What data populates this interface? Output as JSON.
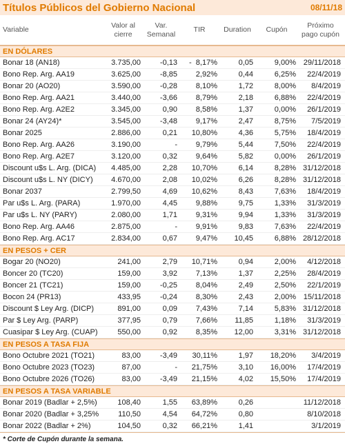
{
  "header": {
    "title": "Títulos Públicos del Gobierno Nacional",
    "date": "08/11/18"
  },
  "columns": [
    [
      "Variable"
    ],
    [
      "Valor al",
      "cierre"
    ],
    [
      "Var.",
      "Semanal"
    ],
    [
      "TIR"
    ],
    [
      "Duration"
    ],
    [
      "Cupón"
    ],
    [
      "Próximo",
      "pago cupón"
    ]
  ],
  "sections": [
    {
      "title": "EN DÓLARES",
      "rows": [
        [
          "Bonar 18 (AN18)",
          "3.735,00",
          "-0,13",
          "-  8,17%",
          "0,05",
          "9,00%",
          "29/11/2018"
        ],
        [
          "Bono Rep. Arg. AA19",
          "3.625,00",
          "-8,85",
          "2,92%",
          "0,44",
          "6,25%",
          "22/4/2019"
        ],
        [
          "Bonar 20 (AO20)",
          "3.590,00",
          "-0,28",
          "8,10%",
          "1,72",
          "8,00%",
          "8/4/2019"
        ],
        [
          "Bono Rep. Arg. AA21",
          "3.440,00",
          "-3,66",
          "8,79%",
          "2,18",
          "6,88%",
          "22/4/2019"
        ],
        [
          "Bono Rep. Arg. A2E2",
          "3.345,00",
          "0,90",
          "8,58%",
          "1,37",
          "0,00%",
          "26/1/2019"
        ],
        [
          "Bonar 24 (AY24)*",
          "3.545,00",
          "-3,48",
          "9,17%",
          "2,47",
          "8,75%",
          "7/5/2019"
        ],
        [
          "Bonar 2025",
          "2.886,00",
          "0,21",
          "10,80%",
          "4,36",
          "5,75%",
          "18/4/2019"
        ],
        [
          "Bono Rep. Arg. AA26",
          "3.190,00",
          "-",
          "9,79%",
          "5,44",
          "7,50%",
          "22/4/2019"
        ],
        [
          "Bono Rep. Arg. A2E7",
          "3.120,00",
          "0,32",
          "9,64%",
          "5,82",
          "0,00%",
          "26/1/2019"
        ],
        [
          "Discount u$s L. Arg. (DICA)",
          "4.485,00",
          "2,28",
          "10,70%",
          "6,14",
          "8,28%",
          "31/12/2018"
        ],
        [
          "Discount u$s L. NY (DICY)",
          "4.670,00",
          "2,08",
          "10,02%",
          "6,26",
          "8,28%",
          "31/12/2018"
        ],
        [
          "Bonar 2037",
          "2.799,50",
          "4,69",
          "10,62%",
          "8,43",
          "7,63%",
          "18/4/2019"
        ],
        [
          "Par u$s L. Arg. (PARA)",
          "1.970,00",
          "4,45",
          "9,88%",
          "9,75",
          "1,33%",
          "31/3/2019"
        ],
        [
          "Par u$s L. NY (PARY)",
          "2.080,00",
          "1,71",
          "9,31%",
          "9,94",
          "1,33%",
          "31/3/2019"
        ],
        [
          "Bono Rep. Arg. AA46",
          "2.875,00",
          "-",
          "9,91%",
          "9,83",
          "7,63%",
          "22/4/2019"
        ],
        [
          "Bono Rep. Arg. AC17",
          "2.834,00",
          "0,67",
          "9,47%",
          "10,45",
          "6,88%",
          "28/12/2018"
        ]
      ]
    },
    {
      "title": "EN PESOS + CER",
      "rows": [
        [
          "Bogar 20 (NO20)",
          "241,00",
          "2,79",
          "10,71%",
          "0,94",
          "2,00%",
          "4/12/2018"
        ],
        [
          "Boncer 20 (TC20)",
          "159,00",
          "3,92",
          "7,13%",
          "1,37",
          "2,25%",
          "28/4/2019"
        ],
        [
          "Boncer 21 (TC21)",
          "159,00",
          "-0,25",
          "8,04%",
          "2,49",
          "2,50%",
          "22/1/2019"
        ],
        [
          "Bocon 24 (PR13)",
          "433,95",
          "-0,24",
          "8,30%",
          "2,43",
          "2,00%",
          "15/11/2018"
        ],
        [
          "Discount $ Ley Arg. (DICP)",
          "891,00",
          "0,09",
          "7,43%",
          "7,14",
          "5,83%",
          "31/12/2018"
        ],
        [
          "Par $ Ley Arg. (PARP)",
          "377,95",
          "0,79",
          "7,66%",
          "11,85",
          "1,18%",
          "31/3/2019"
        ],
        [
          "Cuasipar $ Ley Arg. (CUAP)",
          "550,00",
          "0,92",
          "8,35%",
          "12,00",
          "3,31%",
          "31/12/2018"
        ]
      ]
    },
    {
      "title": "EN PESOS A TASA FIJA",
      "rows": [
        [
          "Bono Octubre 2021 (TO21)",
          "83,00",
          "-3,49",
          "30,11%",
          "1,97",
          "18,20%",
          "3/4/2019"
        ],
        [
          "Bono Octubre 2023 (TO23)",
          "87,00",
          "-",
          "21,75%",
          "3,10",
          "16,00%",
          "17/4/2019"
        ],
        [
          "Bono Octubre 2026 (TO26)",
          "83,00",
          "-3,49",
          "21,15%",
          "4,02",
          "15,50%",
          "17/4/2019"
        ]
      ]
    },
    {
      "title": "EN PESOS A TASA VARIABLE",
      "rows": [
        [
          "Bonar 2019 (Badlar + 2,5%)",
          "108,40",
          "1,55",
          "63,89%",
          "0,26",
          null,
          "11/12/2018"
        ],
        [
          "Bonar 2020 (Badlar + 3,25%",
          "110,50",
          "4,54",
          "64,72%",
          "0,80",
          null,
          "8/10/2018"
        ],
        [
          "Bonar 2022 (Badlar + 2%)",
          "104,50",
          "0,32",
          "66,21%",
          "1,41",
          null,
          "3/1/2019"
        ]
      ]
    }
  ],
  "footnote": "* Corte de Cupón durante la semana."
}
